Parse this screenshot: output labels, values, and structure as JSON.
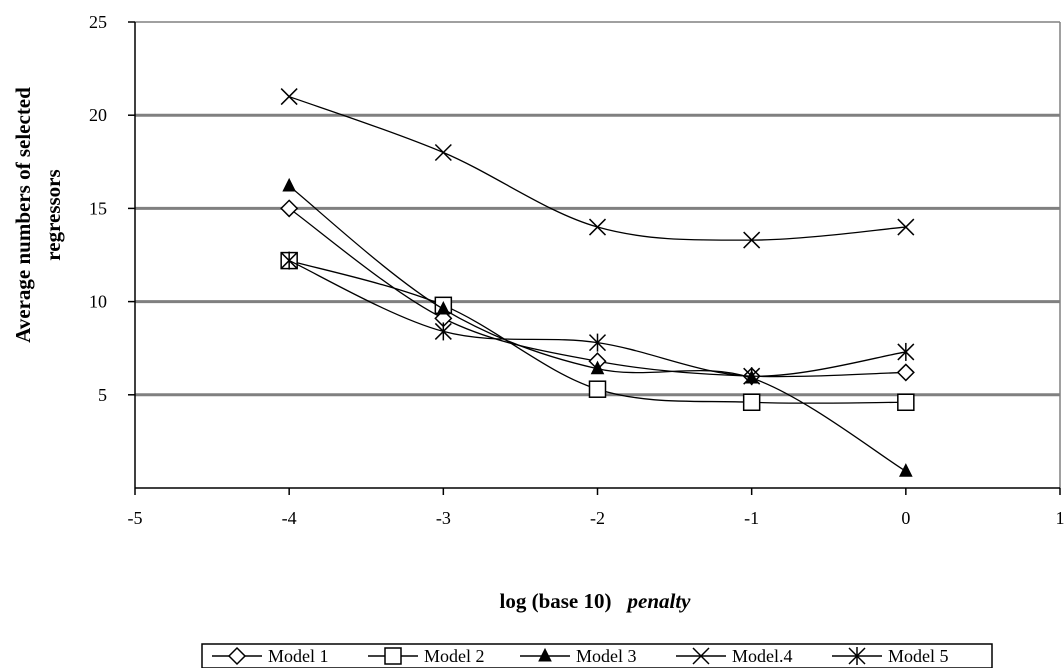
{
  "chart_data": {
    "type": "line",
    "title": "",
    "xlabel": "log (base 10)",
    "xlabel_italic": "penalty",
    "ylabel_line1": "Average numbers of selected",
    "ylabel_line2": "regressors",
    "xlim": [
      -5,
      1
    ],
    "ylim": [
      0,
      25
    ],
    "xticks": [
      -5,
      -4,
      -3,
      -2,
      -1,
      0,
      1
    ],
    "yticks": [
      5,
      10,
      15,
      20,
      25
    ],
    "grid": "horizontal",
    "legend_position": "bottom",
    "x": [
      -4,
      -3,
      -2,
      -1,
      0
    ],
    "series": [
      {
        "name": "Model 1",
        "marker": "diamond-open",
        "values": [
          15.0,
          9.1,
          6.8,
          6.0,
          6.2
        ]
      },
      {
        "name": "Model 2",
        "marker": "square-open",
        "values": [
          12.2,
          9.8,
          5.3,
          4.6,
          4.6
        ]
      },
      {
        "name": "Model 3",
        "marker": "triangle-filled",
        "values": [
          16.2,
          9.6,
          6.4,
          5.9,
          0.9
        ]
      },
      {
        "name": "Model.4",
        "marker": "x",
        "values": [
          21.0,
          18.0,
          14.0,
          13.3,
          14.0
        ]
      },
      {
        "name": "Model 5",
        "marker": "asterisk",
        "values": [
          12.2,
          8.4,
          7.8,
          6.0,
          7.3
        ]
      }
    ]
  }
}
